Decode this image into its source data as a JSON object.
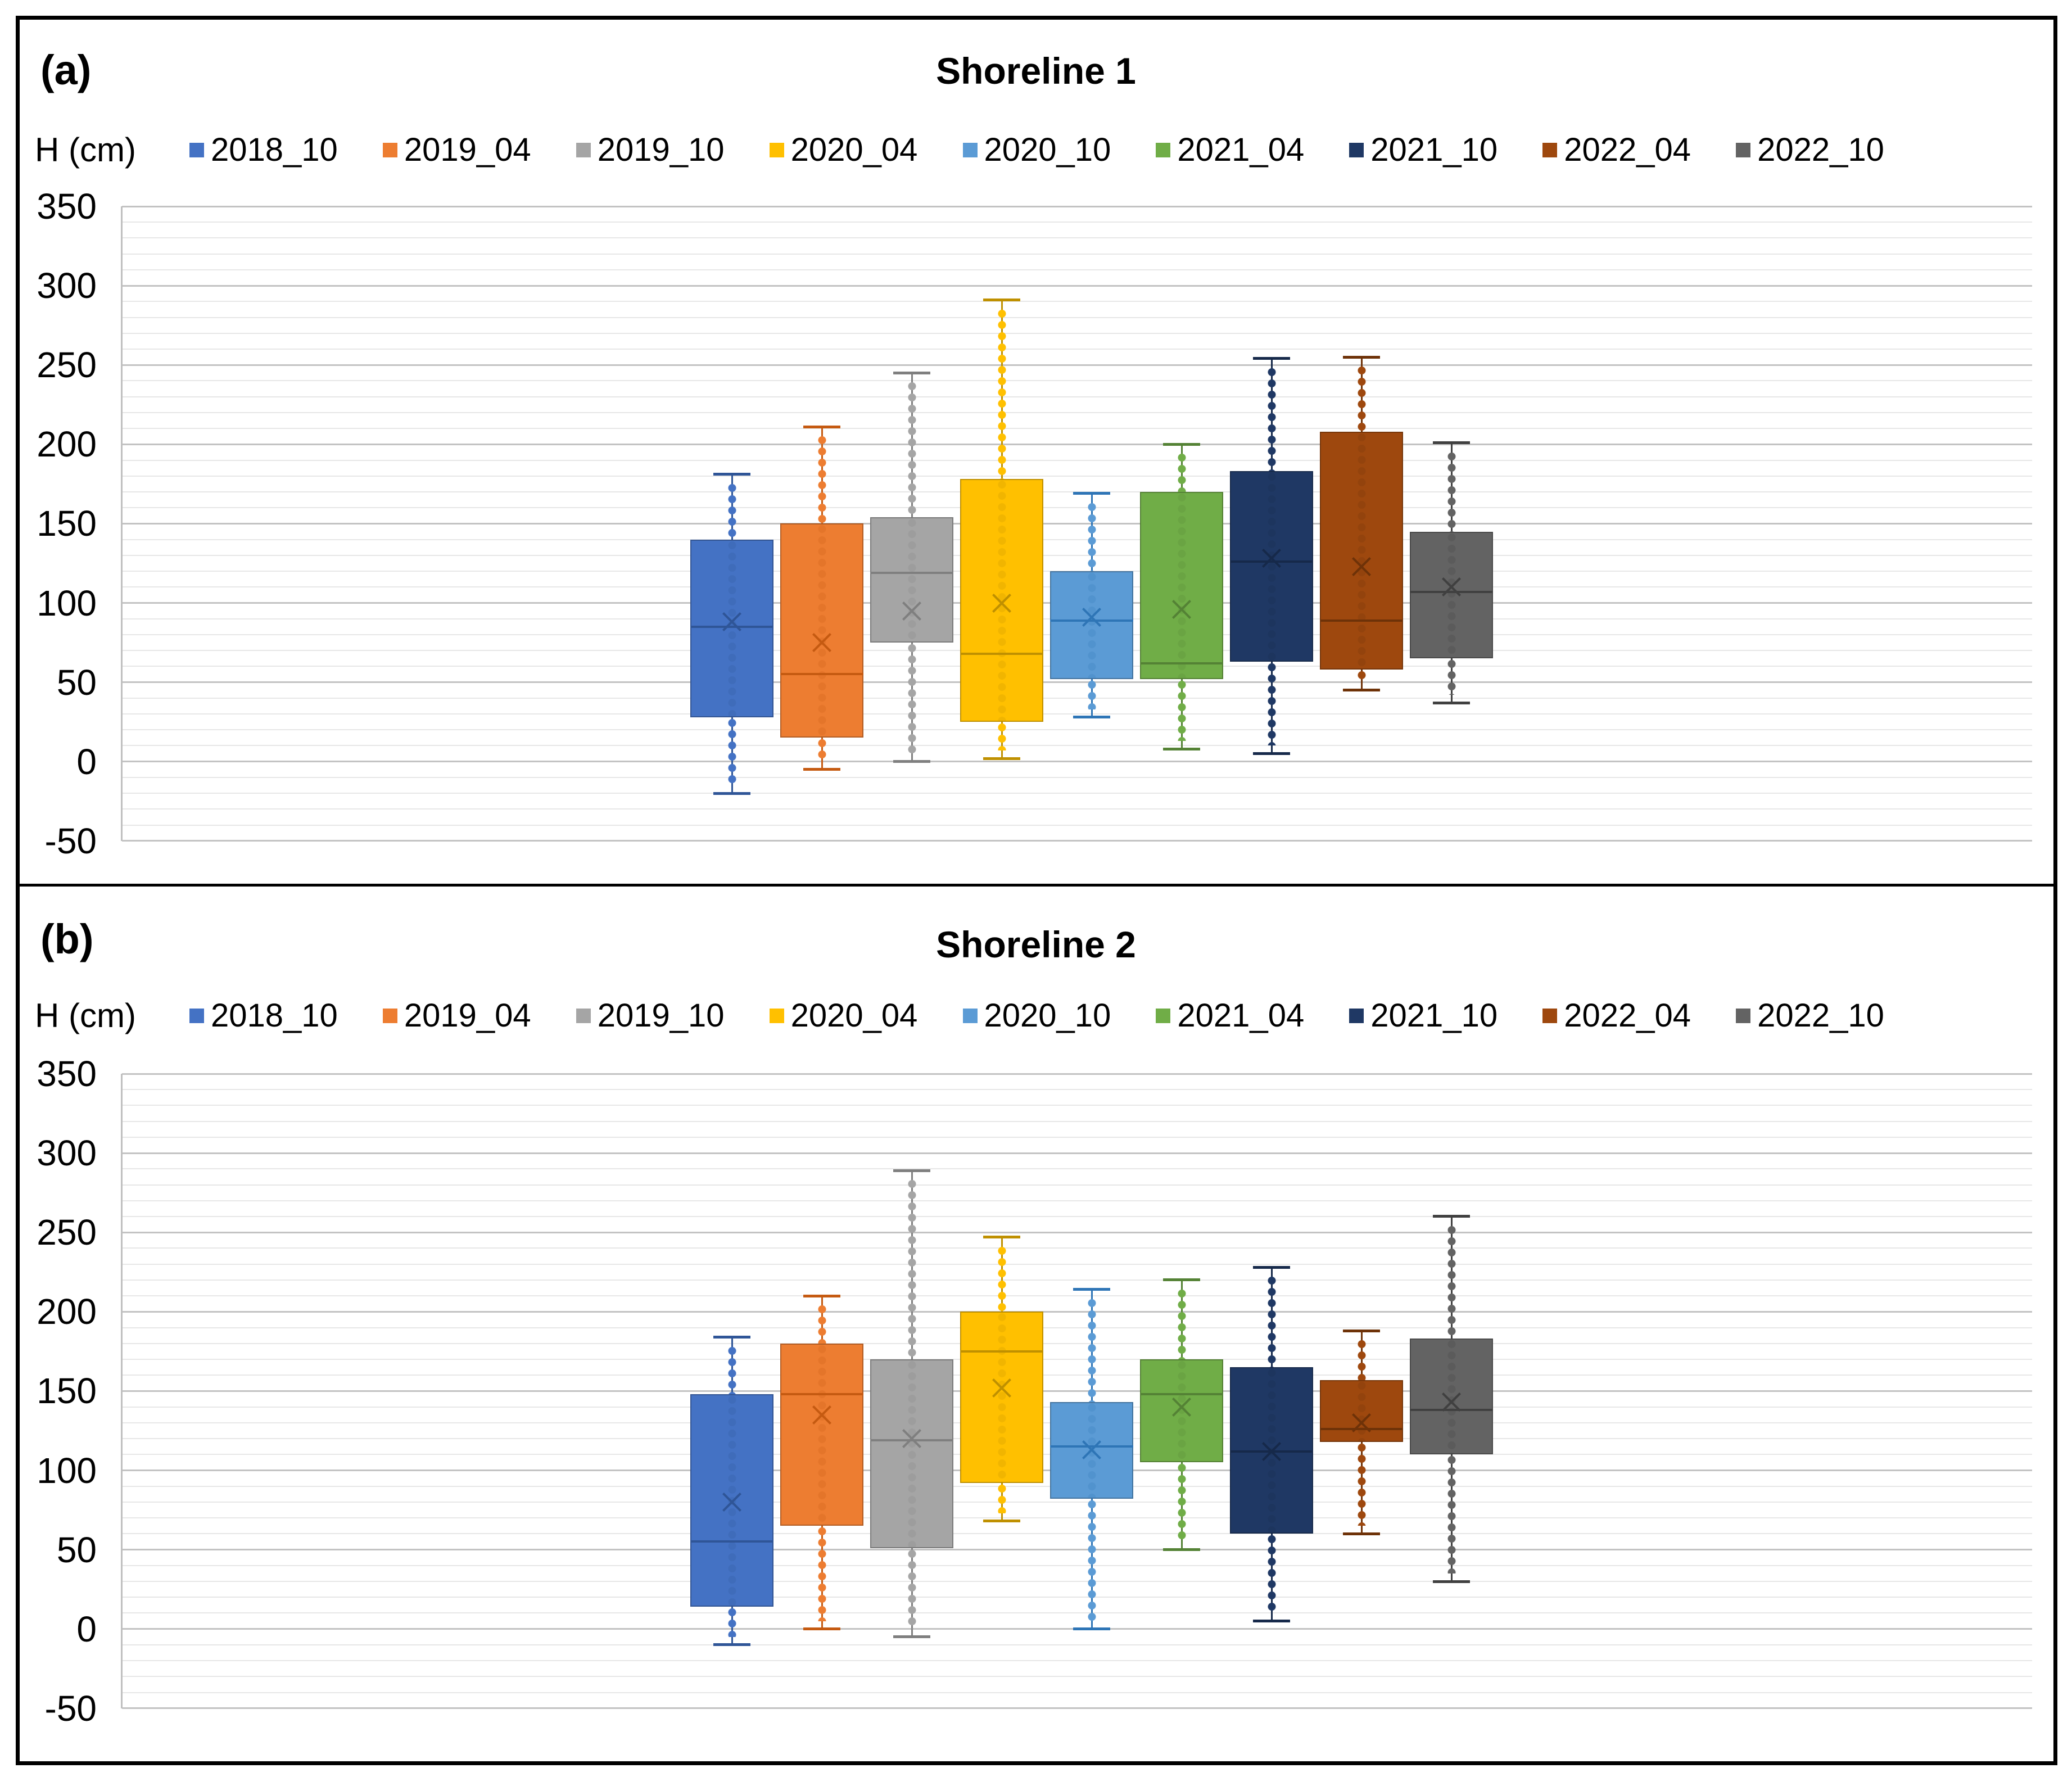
{
  "chart_data": [
    {
      "type": "box",
      "panel_label": "(a)",
      "title": "Shoreline 1",
      "y_axis_label": "H (cm)",
      "ylim": [
        -50,
        350
      ],
      "y_major_step": 50,
      "y_minor_step": 10,
      "grid": "horizontal-only",
      "legend_position": "top",
      "series": [
        {
          "name": "2018_10",
          "color": "#4472C4",
          "dark": "#2F5597",
          "whisker_min": -20,
          "q1": 28,
          "median": 85,
          "mean": 88,
          "q3": 140,
          "whisker_max": 181
        },
        {
          "name": "2019_04",
          "color": "#ED7D31",
          "dark": "#C55A11",
          "whisker_min": -5,
          "q1": 15,
          "median": 55,
          "mean": 75,
          "q3": 150,
          "whisker_max": 211
        },
        {
          "name": "2019_10",
          "color": "#A5A5A5",
          "dark": "#7F7F7F",
          "whisker_min": 0,
          "q1": 75,
          "median": 119,
          "mean": 95,
          "q3": 154,
          "whisker_max": 245
        },
        {
          "name": "2020_04",
          "color": "#FFC000",
          "dark": "#BF9000",
          "whisker_min": 2,
          "q1": 25,
          "median": 68,
          "mean": 100,
          "q3": 178,
          "whisker_max": 291
        },
        {
          "name": "2020_10",
          "color": "#5B9BD5",
          "dark": "#2E75B6",
          "whisker_min": 28,
          "q1": 52,
          "median": 89,
          "mean": 91,
          "q3": 120,
          "whisker_max": 169
        },
        {
          "name": "2021_04",
          "color": "#70AD47",
          "dark": "#548235",
          "whisker_min": 8,
          "q1": 52,
          "median": 62,
          "mean": 96,
          "q3": 170,
          "whisker_max": 200
        },
        {
          "name": "2021_10",
          "color": "#1F3864",
          "dark": "#16294A",
          "whisker_min": 5,
          "q1": 63,
          "median": 126,
          "mean": 128,
          "q3": 183,
          "whisker_max": 254
        },
        {
          "name": "2022_04",
          "color": "#9E480E",
          "dark": "#6E3208",
          "whisker_min": 45,
          "q1": 58,
          "median": 89,
          "mean": 123,
          "q3": 208,
          "whisker_max": 255
        },
        {
          "name": "2022_10",
          "color": "#636363",
          "dark": "#404040",
          "whisker_min": 37,
          "q1": 65,
          "median": 107,
          "mean": 110,
          "q3": 145,
          "whisker_max": 201
        }
      ]
    },
    {
      "type": "box",
      "panel_label": "(b)",
      "title": "Shoreline 2",
      "y_axis_label": "H (cm)",
      "ylim": [
        -50,
        350
      ],
      "y_major_step": 50,
      "y_minor_step": 10,
      "grid": "horizontal-only",
      "legend_position": "top",
      "series": [
        {
          "name": "2018_10",
          "color": "#4472C4",
          "dark": "#2F5597",
          "whisker_min": -10,
          "q1": 14,
          "median": 55,
          "mean": 80,
          "q3": 148,
          "whisker_max": 184
        },
        {
          "name": "2019_04",
          "color": "#ED7D31",
          "dark": "#C55A11",
          "whisker_min": 0,
          "q1": 65,
          "median": 148,
          "mean": 135,
          "q3": 180,
          "whisker_max": 210
        },
        {
          "name": "2019_10",
          "color": "#A5A5A5",
          "dark": "#7F7F7F",
          "whisker_min": -5,
          "q1": 51,
          "median": 119,
          "mean": 120,
          "q3": 170,
          "whisker_max": 289
        },
        {
          "name": "2020_04",
          "color": "#FFC000",
          "dark": "#BF9000",
          "whisker_min": 68,
          "q1": 92,
          "median": 175,
          "mean": 152,
          "q3": 200,
          "whisker_max": 247
        },
        {
          "name": "2020_10",
          "color": "#5B9BD5",
          "dark": "#2E75B6",
          "whisker_min": 0,
          "q1": 82,
          "median": 115,
          "mean": 113,
          "q3": 143,
          "whisker_max": 214
        },
        {
          "name": "2021_04",
          "color": "#70AD47",
          "dark": "#548235",
          "whisker_min": 50,
          "q1": 105,
          "median": 148,
          "mean": 140,
          "q3": 170,
          "whisker_max": 220
        },
        {
          "name": "2021_10",
          "color": "#1F3864",
          "dark": "#16294A",
          "whisker_min": 5,
          "q1": 60,
          "median": 112,
          "mean": 112,
          "q3": 165,
          "whisker_max": 228
        },
        {
          "name": "2022_04",
          "color": "#9E480E",
          "dark": "#6E3208",
          "whisker_min": 60,
          "q1": 118,
          "median": 126,
          "mean": 130,
          "q3": 157,
          "whisker_max": 188
        },
        {
          "name": "2022_10",
          "color": "#636363",
          "dark": "#404040",
          "whisker_min": 30,
          "q1": 110,
          "median": 138,
          "mean": 143,
          "q3": 183,
          "whisker_max": 260
        }
      ]
    }
  ]
}
